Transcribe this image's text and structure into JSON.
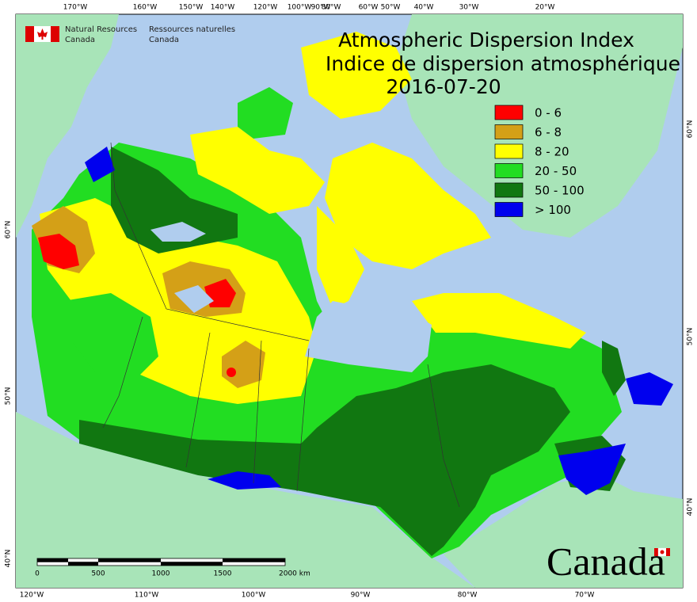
{
  "agency": {
    "en": [
      "Natural Resources",
      "Canada"
    ],
    "fr": [
      "Ressources naturelles",
      "Canada"
    ]
  },
  "title": {
    "line1": "Atmospheric Dispersion Index",
    "line2": "Indice de dispersion atmosphérique",
    "date": "2016-07-20"
  },
  "legend": [
    {
      "label": "0 - 6",
      "color": "#ff0000"
    },
    {
      "label": "6 - 8",
      "color": "#d4a017"
    },
    {
      "label": "8 - 20",
      "color": "#ffff00"
    },
    {
      "label": "20 - 50",
      "color": "#22dd22"
    },
    {
      "label": "50 - 100",
      "color": "#117711"
    },
    {
      "label": "> 100",
      "color": "#0000ee"
    }
  ],
  "graticule": {
    "top": [
      "170°W",
      "160°W",
      "150°W",
      "140°W",
      "120°W",
      "100°W",
      "90°W",
      "80°W",
      "60°W",
      "50°W",
      "40°W",
      "30°W",
      "20°W"
    ],
    "bottom": [
      "120°W",
      "110°W",
      "100°W",
      "90°W",
      "80°W",
      "70°W"
    ],
    "left": [
      "60°N",
      "50°N",
      "40°N"
    ],
    "right": [
      "60°N",
      "50°N",
      "40°N"
    ]
  },
  "scale_bar": [
    "0",
    "500",
    "1000",
    "1500",
    "2000 km"
  ],
  "wordmark": "Canada"
}
